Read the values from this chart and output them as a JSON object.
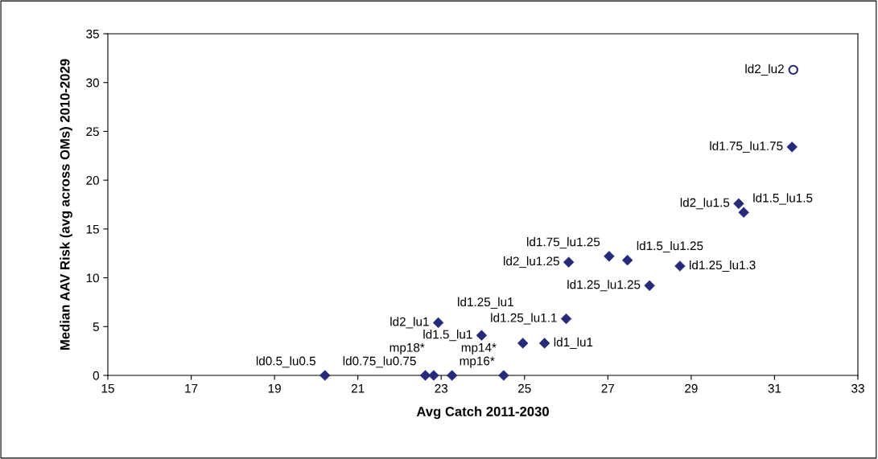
{
  "chart_data": {
    "type": "scatter",
    "xlabel": "Avg Catch 2011-2030",
    "ylabel": "Median AAV Risk (avg across OMs) 2010-2029",
    "xlim": [
      15,
      33
    ],
    "xticks": [
      15,
      17,
      19,
      21,
      23,
      25,
      27,
      29,
      31,
      33
    ],
    "ylim": [
      0,
      35
    ],
    "yticks": [
      0,
      5,
      10,
      15,
      20,
      25,
      30,
      35
    ],
    "grid": false,
    "legend": false,
    "series": [
      {
        "color": "#262a78",
        "marker": "diamond",
        "x": [
          31.42,
          30.14,
          30.26,
          27.03,
          27.47,
          26.06,
          28.73,
          28.0,
          26.0,
          23.97,
          24.96,
          25.48,
          24.5,
          22.93,
          20.21,
          22.62,
          22.82,
          23.26
        ],
        "values": [
          23.4,
          17.6,
          16.7,
          12.2,
          11.8,
          11.6,
          11.2,
          9.2,
          5.8,
          4.1,
          3.3,
          3.3,
          0,
          5.4,
          0,
          0,
          0,
          0
        ]
      },
      {
        "color": "#262a78",
        "marker": "circle",
        "x": [
          31.45
        ],
        "values": [
          31.3
        ]
      }
    ],
    "annotations": [
      {
        "text": "ld2_lu2",
        "x": 31.45,
        "y": 31.3
      },
      {
        "text": "ld1.75_lu1.75",
        "x": 31.42,
        "y": 23.4
      },
      {
        "text": "ld2_lu1.5",
        "x": 30.14,
        "y": 17.6
      },
      {
        "text": "ld1.5_lu1.5",
        "x": 30.26,
        "y": 16.7
      },
      {
        "text": "ld1.75_lu1.25",
        "x": 27.03,
        "y": 12.2
      },
      {
        "text": "ld1.5_lu1.25",
        "x": 27.47,
        "y": 11.8
      },
      {
        "text": "ld2_lu1.25",
        "x": 26.06,
        "y": 11.6
      },
      {
        "text": "ld1.25_lu1.3",
        "x": 28.73,
        "y": 11.2
      },
      {
        "text": "ld1.25_lu1.25",
        "x": 28.0,
        "y": 9.2
      },
      {
        "text": "ld1.25_lu1.1",
        "x": 26.0,
        "y": 5.8
      },
      {
        "text": "ld1.5_lu1",
        "x": 23.97,
        "y": 4.1
      },
      {
        "text": "ld1.25_lu1",
        "x": 24.96,
        "y": 3.3
      },
      {
        "text": "ld1_lu1",
        "x": 25.48,
        "y": 3.3
      },
      {
        "text": "mp16*",
        "x": 24.5,
        "y": 0
      },
      {
        "text": "ld2_lu1",
        "x": 22.93,
        "y": 5.4
      },
      {
        "text": "ld0.5_lu0.5",
        "x": 20.21,
        "y": 0
      },
      {
        "text": "ld0.75_lu0.75",
        "x": 22.62,
        "y": 0
      },
      {
        "text": "mp18*",
        "x": 22.82,
        "y": 0
      },
      {
        "text": "mp14*",
        "x": 23.26,
        "y": 0
      }
    ]
  }
}
